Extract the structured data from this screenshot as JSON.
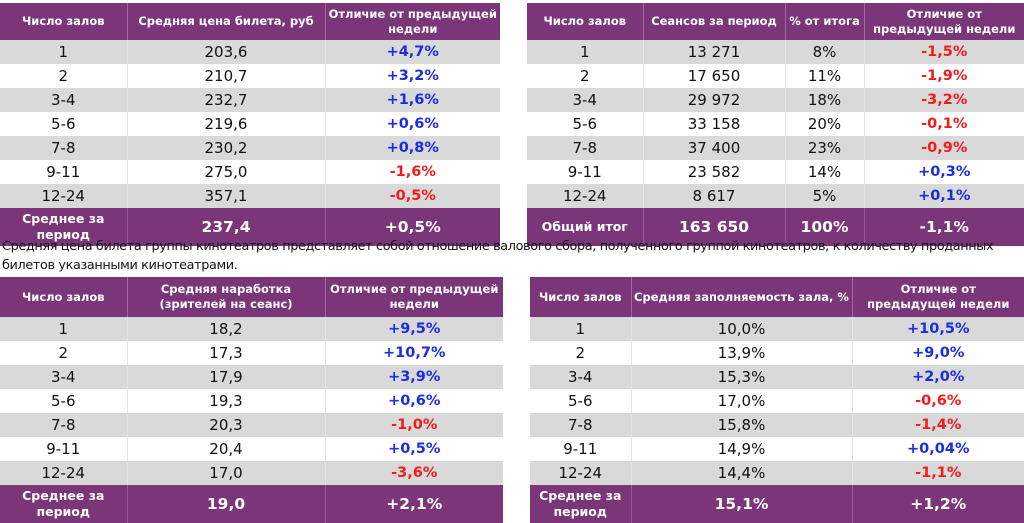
{
  "colors": {
    "header_bg": "#7b3579",
    "row_alt_bg": "#d9d9d9",
    "positive": "#1a2de0",
    "negative": "#f21b1b"
  },
  "tables": [
    {
      "id": "avg-ticket-price",
      "columns": [
        "Число залов",
        "Средняя цена билета, руб",
        "Отличие от предыдущей недели"
      ],
      "rows": [
        {
          "halls": "1",
          "value": "203,6",
          "change": "+4,7%",
          "sign": "pos"
        },
        {
          "halls": "2",
          "value": "210,7",
          "change": "+3,2%",
          "sign": "pos"
        },
        {
          "halls": "3-4",
          "value": "232,7",
          "change": "+1,6%",
          "sign": "pos"
        },
        {
          "halls": "5-6",
          "value": "219,6",
          "change": "+0,6%",
          "sign": "pos"
        },
        {
          "halls": "7-8",
          "value": "230,2",
          "change": "+0,8%",
          "sign": "pos"
        },
        {
          "halls": "9-11",
          "value": "275,0",
          "change": "-1,6%",
          "sign": "neg"
        },
        {
          "halls": "12-24",
          "value": "357,1",
          "change": "-0,5%",
          "sign": "neg"
        }
      ],
      "total": {
        "label": "Среднее за период",
        "value": "237,4",
        "change": "+0,5%"
      }
    },
    {
      "id": "sessions",
      "columns": [
        "Число залов",
        "Сеансов за период",
        "% от итога",
        "Отличие от предыдущей недели"
      ],
      "rows": [
        {
          "halls": "1",
          "value": "13 271",
          "share": "8%",
          "change": "-1,5%",
          "sign": "neg"
        },
        {
          "halls": "2",
          "value": "17 650",
          "share": "11%",
          "change": "-1,9%",
          "sign": "neg"
        },
        {
          "halls": "3-4",
          "value": "29 972",
          "share": "18%",
          "change": "-3,2%",
          "sign": "neg"
        },
        {
          "halls": "5-6",
          "value": "33 158",
          "share": "20%",
          "change": "-0,1%",
          "sign": "neg"
        },
        {
          "halls": "7-8",
          "value": "37 400",
          "share": "23%",
          "change": "-0,9%",
          "sign": "neg"
        },
        {
          "halls": "9-11",
          "value": "23 582",
          "share": "14%",
          "change": "+0,3%",
          "sign": "pos"
        },
        {
          "halls": "12-24",
          "value": "8 617",
          "share": "5%",
          "change": "+0,1%",
          "sign": "pos"
        }
      ],
      "total": {
        "label": "Общий итог",
        "value": "163 650",
        "share": "100%",
        "change": "-1,1%"
      }
    },
    {
      "id": "avg-attendance",
      "columns": [
        "Число залов",
        "Средняя наработка (зрителей на сеанс)",
        "Отличие от предыдущей недели"
      ],
      "rows": [
        {
          "halls": "1",
          "value": "18,2",
          "change": "+9,5%",
          "sign": "pos"
        },
        {
          "halls": "2",
          "value": "17,3",
          "change": "+10,7%",
          "sign": "pos"
        },
        {
          "halls": "3-4",
          "value": "17,9",
          "change": "+3,9%",
          "sign": "pos"
        },
        {
          "halls": "5-6",
          "value": "19,3",
          "change": "+0,6%",
          "sign": "pos"
        },
        {
          "halls": "7-8",
          "value": "20,3",
          "change": "-1,0%",
          "sign": "neg"
        },
        {
          "halls": "9-11",
          "value": "20,4",
          "change": "+0,5%",
          "sign": "pos"
        },
        {
          "halls": "12-24",
          "value": "17,0",
          "change": "-3,6%",
          "sign": "neg"
        }
      ],
      "total": {
        "label": "Среднее за период",
        "value": "19,0",
        "change": "+2,1%"
      }
    },
    {
      "id": "avg-occupancy",
      "columns": [
        "Число залов",
        "Средняя заполняемость зала, %",
        "Отличие от предыдущей недели"
      ],
      "rows": [
        {
          "halls": "1",
          "value": "10,0%",
          "change": "+10,5%",
          "sign": "pos"
        },
        {
          "halls": "2",
          "value": "13,9%",
          "change": "+9,0%",
          "sign": "pos"
        },
        {
          "halls": "3-4",
          "value": "15,3%",
          "change": "+2,0%",
          "sign": "pos"
        },
        {
          "halls": "5-6",
          "value": "17,0%",
          "change": "-0,6%",
          "sign": "neg"
        },
        {
          "halls": "7-8",
          "value": "15,8%",
          "change": "-1,4%",
          "sign": "neg"
        },
        {
          "halls": "9-11",
          "value": "14,9%",
          "change": "+0,04%",
          "sign": "pos"
        },
        {
          "halls": "12-24",
          "value": "14,4%",
          "change": "-1,1%",
          "sign": "neg"
        }
      ],
      "total": {
        "label": "Среднее за период",
        "value": "15,1%",
        "change": "+1,2%"
      }
    }
  ],
  "note": "Средняя цена билета группы кинотеатров представляет собой отношение валового сбора, полученного группой кинотеатров, к количеству проданных билетов указанными кинотеатрами."
}
